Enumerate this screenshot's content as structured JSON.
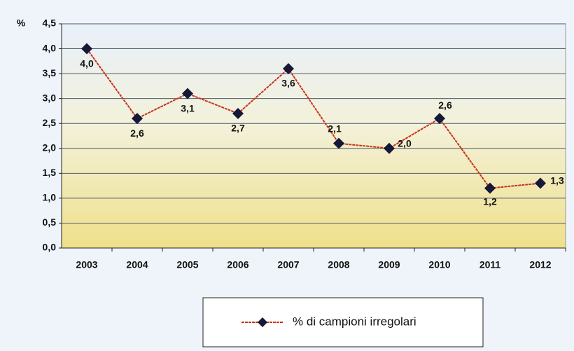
{
  "chart_data": {
    "type": "line",
    "ylabel": "%",
    "categories": [
      "2003",
      "2004",
      "2005",
      "2006",
      "2007",
      "2008",
      "2009",
      "2010",
      "2011",
      "2012"
    ],
    "series": [
      {
        "name": "% di campioni irregolari",
        "color": "#c8341c",
        "marker_color": "#151838",
        "values": [
          4.0,
          2.6,
          3.1,
          2.7,
          3.6,
          2.1,
          2.0,
          2.6,
          1.2,
          1.3
        ],
        "value_labels": [
          "4,0",
          "2,6",
          "3,1",
          "2,7",
          "3,6",
          "2,1",
          "2,0",
          "2,6",
          "1,2",
          "1,3"
        ]
      }
    ],
    "ylim": [
      0,
      4.5
    ],
    "yticks": [
      {
        "value": 0,
        "label": "0,0"
      },
      {
        "value": 0.5,
        "label": "0,5"
      },
      {
        "value": 1,
        "label": "1,0"
      },
      {
        "value": 1.5,
        "label": "1,5"
      },
      {
        "value": 2,
        "label": "2,0"
      },
      {
        "value": 2.5,
        "label": "2,5"
      },
      {
        "value": 3,
        "label": "3,0"
      },
      {
        "value": 3.5,
        "label": "3,5"
      },
      {
        "value": 4,
        "label": "4,0"
      },
      {
        "value": 4.5,
        "label": "4,5"
      }
    ],
    "grid": true,
    "legend": "bottom"
  }
}
